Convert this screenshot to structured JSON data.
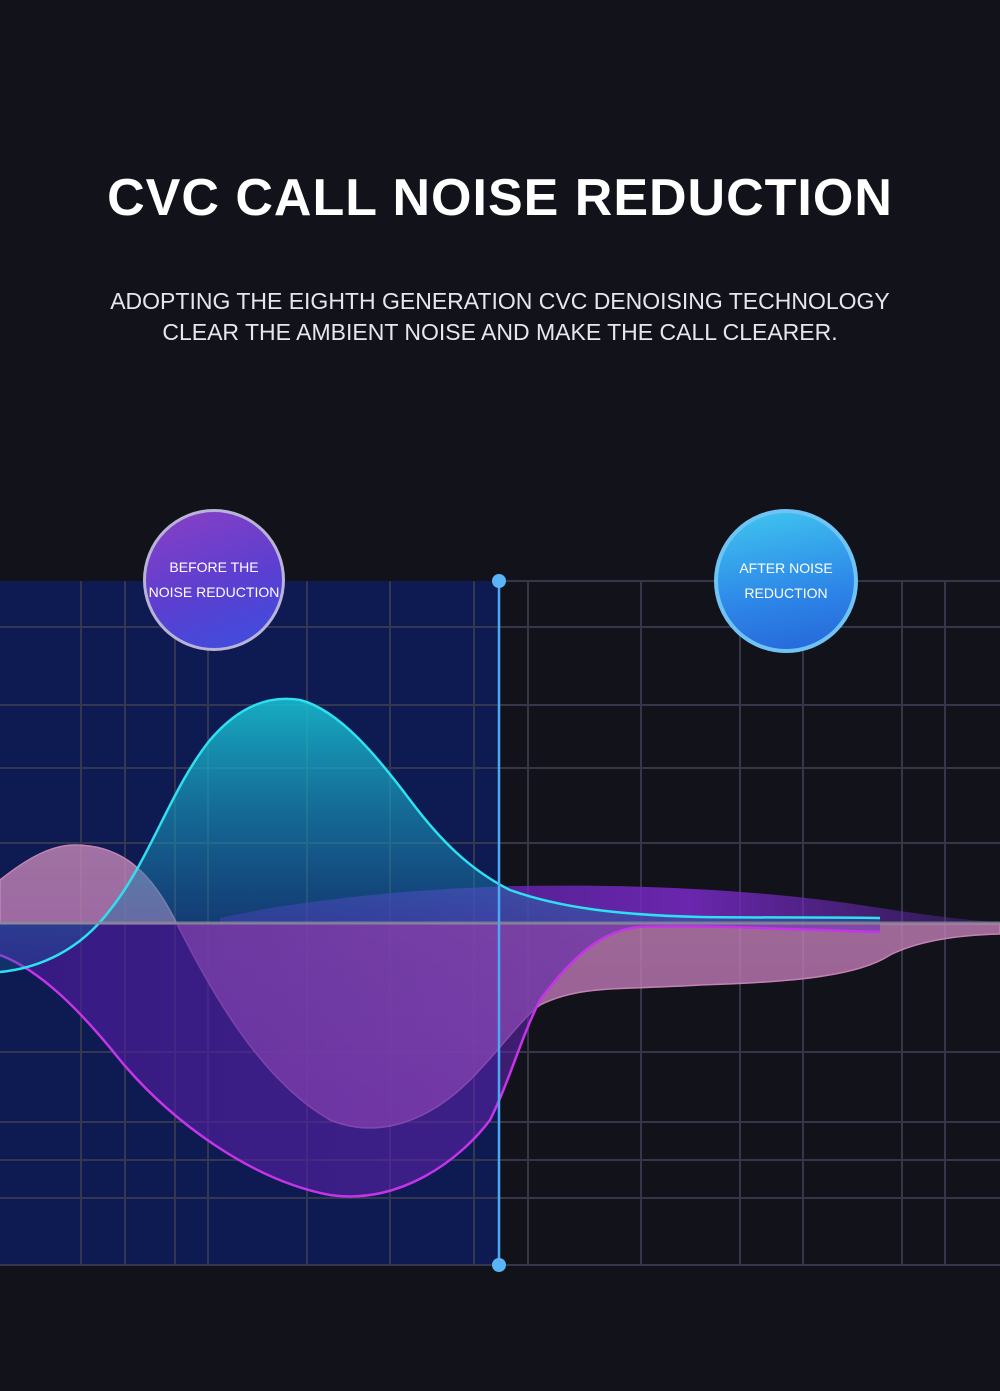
{
  "header": {
    "title": "CVC CALL NOISE REDUCTION",
    "subtitle_line1": "ADOPTING THE EIGHTH GENERATION CVC DENOISING TECHNOLOGY",
    "subtitle_line2": "CLEAR THE AMBIENT NOISE AND MAKE THE CALL CLEARER."
  },
  "badges": {
    "before_line1": "BEFORE THE",
    "before_line2": "NOISE REDUCTION",
    "after_line1": "AFTER NOISE",
    "after_line2": "REDUCTION"
  },
  "colors": {
    "background": "#12121b",
    "before_panel": "#0e1a52",
    "cyan_wave": "#2ee0f0",
    "magenta_wave": "#c435e8",
    "pink_wave": "#c07ab8",
    "divider": "#4aa8f5"
  }
}
